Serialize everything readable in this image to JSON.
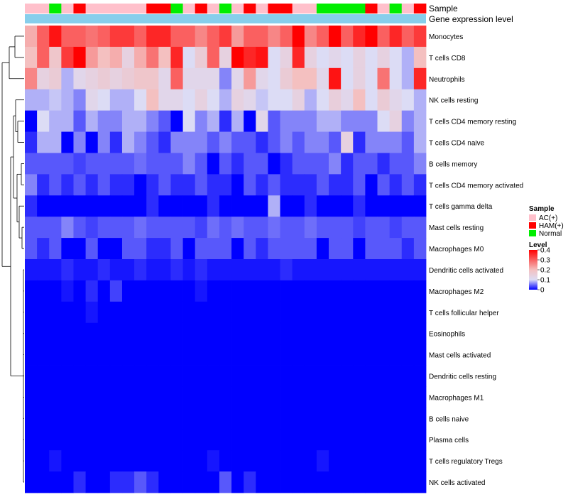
{
  "chart_data": {
    "type": "heatmap",
    "title": "",
    "annotation_rows": {
      "sample_label": "Sample",
      "level_label": "Gene expression level"
    },
    "column_count": 33,
    "sample_groups": [
      "AC(+)",
      "AC(+)",
      "Normal",
      "AC(+)",
      "HAM(+)",
      "AC(+)",
      "AC(+)",
      "AC(+)",
      "AC(+)",
      "AC(+)",
      "HAM(+)",
      "HAM(+)",
      "Normal",
      "AC(+)",
      "HAM(+)",
      "AC(+)",
      "Normal",
      "AC(+)",
      "HAM(+)",
      "AC(+)",
      "HAM(+)",
      "HAM(+)",
      "AC(+)",
      "AC(+)",
      "Normal",
      "Normal",
      "Normal",
      "Normal",
      "HAM(+)",
      "AC(+)",
      "Normal",
      "AC(+)",
      "HAM(+)"
    ],
    "sample_colors": {
      "AC(+)": "#ffc0cb",
      "HAM(+)": "#ff0000",
      "Normal": "#00ee00"
    },
    "row_labels": [
      "Monocytes",
      "T cells CD8",
      "Neutrophils",
      "NK cells resting",
      "T cells CD4 memory resting",
      "T cells CD4 naive",
      "B cells memory",
      "T cells CD4 memory activated",
      "T cells gamma delta",
      "Mast cells resting",
      "Macrophages M0",
      "Dendritic cells activated",
      "Macrophages M2",
      "T cells follicular helper",
      "Eosinophils",
      "Mast cells activated",
      "Dendritic cells resting",
      "Macrophages M1",
      "B cells naive",
      "Plasma cells",
      "T cells regulatory  Tregs",
      "NK cells activated"
    ],
    "values": [
      [
        0.22,
        0.3,
        0.38,
        0.3,
        0.3,
        0.28,
        0.3,
        0.34,
        0.34,
        0.3,
        0.36,
        0.36,
        0.3,
        0.3,
        0.26,
        0.3,
        0.34,
        0.24,
        0.3,
        0.3,
        0.26,
        0.3,
        0.4,
        0.26,
        0.3,
        0.42,
        0.3,
        0.36,
        0.4,
        0.3,
        0.36,
        0.3,
        0.34
      ],
      [
        0.2,
        0.3,
        0.18,
        0.34,
        0.4,
        0.24,
        0.2,
        0.22,
        0.14,
        0.22,
        0.28,
        0.2,
        0.36,
        0.1,
        0.16,
        0.3,
        0.14,
        0.4,
        0.36,
        0.38,
        0.1,
        0.14,
        0.36,
        0.14,
        0.1,
        0.12,
        0.1,
        0.14,
        0.1,
        0.14,
        0.1,
        0.08,
        0.2
      ],
      [
        0.26,
        0.14,
        0.16,
        0.08,
        0.12,
        0.14,
        0.16,
        0.14,
        0.16,
        0.18,
        0.18,
        0.12,
        0.3,
        0.12,
        0.12,
        0.12,
        0.06,
        0.12,
        0.24,
        0.12,
        0.1,
        0.16,
        0.2,
        0.2,
        0.12,
        0.38,
        0.1,
        0.14,
        0.1,
        0.28,
        0.1,
        0.08,
        0.36
      ],
      [
        0.08,
        0.08,
        0.09,
        0.08,
        0.06,
        0.12,
        0.1,
        0.08,
        0.08,
        0.1,
        0.2,
        0.12,
        0.12,
        0.1,
        0.14,
        0.1,
        0.08,
        0.14,
        0.12,
        0.09,
        0.1,
        0.1,
        0.14,
        0.08,
        0.1,
        0.15,
        0.12,
        0.2,
        0.1,
        0.16,
        0.12,
        0.1,
        0.08
      ],
      [
        0.0,
        0.1,
        0.08,
        0.08,
        0.04,
        0.08,
        0.06,
        0.06,
        0.08,
        0.08,
        0.06,
        0.04,
        0.0,
        0.1,
        0.06,
        0.08,
        0.02,
        0.08,
        0.0,
        0.12,
        0.04,
        0.06,
        0.06,
        0.06,
        0.08,
        0.08,
        0.06,
        0.06,
        0.06,
        0.1,
        0.14,
        0.06,
        0.08
      ],
      [
        0.02,
        0.08,
        0.08,
        0.0,
        0.06,
        0.0,
        0.06,
        0.02,
        0.08,
        0.06,
        0.04,
        0.02,
        0.06,
        0.06,
        0.06,
        0.04,
        0.06,
        0.04,
        0.04,
        0.02,
        0.04,
        0.06,
        0.04,
        0.06,
        0.06,
        0.04,
        0.14,
        0.02,
        0.06,
        0.06,
        0.06,
        0.04,
        0.08
      ],
      [
        0.04,
        0.04,
        0.04,
        0.04,
        0.03,
        0.04,
        0.04,
        0.04,
        0.04,
        0.05,
        0.04,
        0.04,
        0.04,
        0.06,
        0.04,
        0.0,
        0.04,
        0.02,
        0.04,
        0.04,
        0.0,
        0.02,
        0.04,
        0.04,
        0.04,
        0.06,
        0.02,
        0.04,
        0.04,
        0.02,
        0.04,
        0.04,
        0.06
      ],
      [
        0.06,
        0.02,
        0.04,
        0.02,
        0.04,
        0.02,
        0.04,
        0.02,
        0.02,
        0.0,
        0.02,
        0.04,
        0.02,
        0.02,
        0.04,
        0.02,
        0.02,
        0.0,
        0.04,
        0.02,
        0.04,
        0.02,
        0.02,
        0.02,
        0.04,
        0.02,
        0.02,
        0.04,
        0.0,
        0.04,
        0.02,
        0.04,
        0.02
      ],
      [
        0.02,
        0.0,
        0.0,
        0.0,
        0.0,
        0.0,
        0.0,
        0.0,
        0.0,
        0.0,
        0.02,
        0.0,
        0.0,
        0.0,
        0.0,
        0.02,
        0.0,
        0.0,
        0.0,
        0.0,
        0.08,
        0.0,
        0.0,
        0.02,
        0.0,
        0.0,
        0.0,
        0.02,
        0.0,
        0.0,
        0.0,
        0.0,
        0.0
      ],
      [
        0.04,
        0.04,
        0.04,
        0.06,
        0.04,
        0.03,
        0.04,
        0.04,
        0.04,
        0.05,
        0.04,
        0.04,
        0.04,
        0.04,
        0.03,
        0.05,
        0.04,
        0.05,
        0.04,
        0.04,
        0.05,
        0.04,
        0.04,
        0.05,
        0.04,
        0.04,
        0.04,
        0.03,
        0.04,
        0.04,
        0.03,
        0.04,
        0.04
      ],
      [
        0.04,
        0.02,
        0.04,
        0.0,
        0.0,
        0.04,
        0.0,
        0.0,
        0.04,
        0.04,
        0.02,
        0.02,
        0.04,
        0.0,
        0.04,
        0.04,
        0.04,
        0.0,
        0.04,
        0.02,
        0.04,
        0.04,
        0.04,
        0.04,
        0.0,
        0.04,
        0.04,
        0.0,
        0.04,
        0.04,
        0.04,
        0.02,
        0.04
      ],
      [
        0.01,
        0.01,
        0.01,
        0.02,
        0.01,
        0.01,
        0.02,
        0.01,
        0.01,
        0.02,
        0.01,
        0.01,
        0.02,
        0.01,
        0.02,
        0.01,
        0.01,
        0.01,
        0.01,
        0.01,
        0.01,
        0.02,
        0.01,
        0.01,
        0.01,
        0.01,
        0.01,
        0.01,
        0.01,
        0.01,
        0.01,
        0.01,
        0.01
      ],
      [
        0.0,
        0.0,
        0.0,
        0.01,
        0.0,
        0.02,
        0.0,
        0.03,
        0.0,
        0.0,
        0.0,
        0.0,
        0.0,
        0.0,
        0.01,
        0.0,
        0.0,
        0.0,
        0.0,
        0.0,
        0.0,
        0.0,
        0.0,
        0.0,
        0.0,
        0.0,
        0.0,
        0.0,
        0.0,
        0.0,
        0.0,
        0.0,
        0.0
      ],
      [
        0.0,
        0.0,
        0.0,
        0.0,
        0.0,
        0.01,
        0.0,
        0.0,
        0.0,
        0.0,
        0.0,
        0.0,
        0.0,
        0.0,
        0.0,
        0.0,
        0.0,
        0.0,
        0.0,
        0.0,
        0.0,
        0.0,
        0.0,
        0.0,
        0.0,
        0.0,
        0.0,
        0.0,
        0.0,
        0.0,
        0.0,
        0.0,
        0.0
      ],
      [
        0.0,
        0.0,
        0.0,
        0.0,
        0.0,
        0.0,
        0.0,
        0.0,
        0.0,
        0.0,
        0.0,
        0.0,
        0.0,
        0.0,
        0.0,
        0.0,
        0.0,
        0.0,
        0.0,
        0.0,
        0.0,
        0.0,
        0.0,
        0.0,
        0.0,
        0.0,
        0.0,
        0.0,
        0.0,
        0.0,
        0.0,
        0.0,
        0.0
      ],
      [
        0.0,
        0.0,
        0.0,
        0.0,
        0.0,
        0.0,
        0.0,
        0.0,
        0.0,
        0.0,
        0.0,
        0.0,
        0.0,
        0.0,
        0.0,
        0.0,
        0.0,
        0.0,
        0.0,
        0.0,
        0.0,
        0.0,
        0.0,
        0.0,
        0.0,
        0.0,
        0.0,
        0.0,
        0.0,
        0.0,
        0.0,
        0.0,
        0.0
      ],
      [
        0.0,
        0.0,
        0.0,
        0.0,
        0.0,
        0.0,
        0.0,
        0.0,
        0.0,
        0.0,
        0.0,
        0.0,
        0.0,
        0.0,
        0.0,
        0.0,
        0.0,
        0.0,
        0.0,
        0.0,
        0.0,
        0.0,
        0.0,
        0.0,
        0.0,
        0.0,
        0.0,
        0.0,
        0.0,
        0.0,
        0.0,
        0.0,
        0.0
      ],
      [
        0.0,
        0.0,
        0.0,
        0.0,
        0.0,
        0.0,
        0.0,
        0.0,
        0.0,
        0.0,
        0.0,
        0.0,
        0.0,
        0.0,
        0.0,
        0.0,
        0.0,
        0.0,
        0.0,
        0.0,
        0.0,
        0.0,
        0.0,
        0.0,
        0.0,
        0.0,
        0.0,
        0.0,
        0.0,
        0.0,
        0.0,
        0.0,
        0.0
      ],
      [
        0.0,
        0.0,
        0.0,
        0.0,
        0.0,
        0.0,
        0.0,
        0.0,
        0.0,
        0.0,
        0.0,
        0.0,
        0.0,
        0.0,
        0.0,
        0.0,
        0.0,
        0.0,
        0.0,
        0.0,
        0.0,
        0.0,
        0.0,
        0.0,
        0.0,
        0.0,
        0.0,
        0.0,
        0.0,
        0.0,
        0.0,
        0.0,
        0.0
      ],
      [
        0.0,
        0.0,
        0.0,
        0.0,
        0.0,
        0.0,
        0.0,
        0.0,
        0.0,
        0.0,
        0.0,
        0.0,
        0.0,
        0.0,
        0.0,
        0.0,
        0.0,
        0.0,
        0.0,
        0.0,
        0.0,
        0.0,
        0.0,
        0.0,
        0.0,
        0.0,
        0.0,
        0.0,
        0.0,
        0.0,
        0.0,
        0.0,
        0.0
      ],
      [
        0.0,
        0.0,
        0.01,
        0.0,
        0.0,
        0.0,
        0.0,
        0.0,
        0.0,
        0.0,
        0.0,
        0.0,
        0.0,
        0.0,
        0.0,
        0.01,
        0.0,
        0.0,
        0.0,
        0.0,
        0.0,
        0.0,
        0.0,
        0.0,
        0.01,
        0.0,
        0.0,
        0.0,
        0.0,
        0.0,
        0.0,
        0.0,
        0.0
      ],
      [
        0.0,
        0.0,
        0.0,
        0.0,
        0.02,
        0.0,
        0.0,
        0.02,
        0.02,
        0.04,
        0.02,
        0.0,
        0.0,
        0.0,
        0.0,
        0.0,
        0.04,
        0.0,
        0.02,
        0.0,
        0.0,
        0.0,
        0.0,
        0.0,
        0.0,
        0.0,
        0.0,
        0.0,
        0.0,
        0.0,
        0.0,
        0.0,
        0.0
      ]
    ],
    "color_scale": {
      "min": 0,
      "max": 0.4,
      "stops": [
        {
          "value": 0.0,
          "color": "#0000ff"
        },
        {
          "value": 0.1,
          "color": "#dcdcf5"
        },
        {
          "value": 0.2,
          "color": "#f4c0c0"
        },
        {
          "value": 0.4,
          "color": "#ff0000"
        }
      ]
    },
    "legend": {
      "sample_title": "Sample",
      "sample_items": [
        {
          "label": "AC(+)",
          "color": "#ffc0cb"
        },
        {
          "label": "HAM(+)",
          "color": "#ff0000"
        },
        {
          "label": "Normal",
          "color": "#00ee00"
        }
      ],
      "level_title": "Level",
      "level_ticks": [
        "0.4",
        "0.3",
        "0.2",
        "0.1",
        "0"
      ],
      "placement": "right"
    },
    "level_bar_color": "#87ceeb",
    "dendrogram_color": "#000000"
  }
}
